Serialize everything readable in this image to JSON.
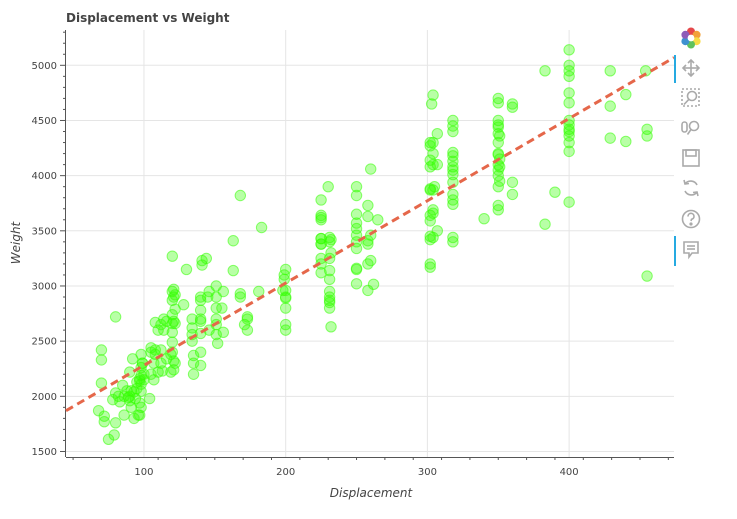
{
  "chart_data": {
    "type": "scatter",
    "title": "Displacement vs Weight",
    "xlabel": "Displacement",
    "ylabel": "Weight",
    "xlim": [
      45,
      474
    ],
    "ylim": [
      1450,
      5320
    ],
    "xticks": [
      100,
      200,
      300,
      400
    ],
    "yticks": [
      1500,
      2000,
      2500,
      3000,
      3500,
      4000,
      4500,
      5000
    ],
    "grid": true,
    "point_color": "#33ff00",
    "regression_color": "#e5674a",
    "regression": {
      "x0": 45,
      "y0": 1870,
      "x1": 474,
      "y1": 5070
    },
    "points": [
      [
        70,
        2420
      ],
      [
        70,
        2330
      ],
      [
        70,
        2120
      ],
      [
        68,
        1870
      ],
      [
        72,
        1820
      ],
      [
        72,
        1770
      ],
      [
        75,
        1610
      ],
      [
        79,
        1650
      ],
      [
        78,
        1970
      ],
      [
        80,
        2030
      ],
      [
        80,
        2720
      ],
      [
        80,
        1760
      ],
      [
        82,
        2000
      ],
      [
        83,
        1950
      ],
      [
        85,
        2100
      ],
      [
        86,
        2000
      ],
      [
        86,
        1830
      ],
      [
        88,
        2050
      ],
      [
        89,
        1990
      ],
      [
        90,
        2220
      ],
      [
        90,
        2000
      ],
      [
        90,
        1960
      ],
      [
        91,
        1900
      ],
      [
        91,
        2050
      ],
      [
        92,
        2340
      ],
      [
        93,
        1800
      ],
      [
        93,
        2040
      ],
      [
        94,
        1980
      ],
      [
        95,
        2070
      ],
      [
        95,
        2130
      ],
      [
        96,
        1830
      ],
      [
        97,
        2140
      ],
      [
        97,
        2160
      ],
      [
        97,
        1830
      ],
      [
        97,
        1940
      ],
      [
        98,
        2045
      ],
      [
        98,
        2190
      ],
      [
        98,
        2260
      ],
      [
        98,
        2380
      ],
      [
        98,
        1900
      ],
      [
        98,
        2110
      ],
      [
        99,
        2300
      ],
      [
        99,
        2300
      ],
      [
        100,
        2200
      ],
      [
        100,
        2150
      ],
      [
        104,
        1980
      ],
      [
        105,
        2200
      ],
      [
        105,
        2400
      ],
      [
        105,
        2440
      ],
      [
        107,
        2300
      ],
      [
        107,
        2150
      ],
      [
        108,
        2420
      ],
      [
        108,
        2380
      ],
      [
        108,
        2670
      ],
      [
        110,
        2220
      ],
      [
        110,
        2600
      ],
      [
        112,
        2650
      ],
      [
        112,
        2420
      ],
      [
        112,
        2300
      ],
      [
        113,
        2230
      ],
      [
        114,
        2600
      ],
      [
        114,
        2700
      ],
      [
        116,
        2680
      ],
      [
        116,
        2340
      ],
      [
        119,
        2380
      ],
      [
        119,
        2220
      ],
      [
        120,
        2950
      ],
      [
        120,
        2870
      ],
      [
        120,
        3270
      ],
      [
        120,
        2740
      ],
      [
        120,
        2660
      ],
      [
        120,
        2580
      ],
      [
        120,
        2490
      ],
      [
        120,
        2400
      ],
      [
        121,
        2240
      ],
      [
        121,
        2320
      ],
      [
        121,
        2900
      ],
      [
        121,
        2680
      ],
      [
        121,
        2970
      ],
      [
        122,
        2300
      ],
      [
        122,
        2920
      ],
      [
        122,
        2790
      ],
      [
        122,
        2660
      ],
      [
        128,
        2830
      ],
      [
        130,
        3150
      ],
      [
        134,
        2700
      ],
      [
        134,
        2620
      ],
      [
        134,
        2560
      ],
      [
        134,
        2500
      ],
      [
        135,
        2370
      ],
      [
        135,
        2300
      ],
      [
        135,
        2200
      ],
      [
        140,
        2400
      ],
      [
        140,
        2870
      ],
      [
        140,
        2780
      ],
      [
        140,
        2680
      ],
      [
        140,
        2570
      ],
      [
        140,
        2280
      ],
      [
        140,
        2700
      ],
      [
        140,
        2900
      ],
      [
        141,
        3230
      ],
      [
        141,
        3190
      ],
      [
        144,
        3250
      ],
      [
        145,
        2900
      ],
      [
        146,
        2950
      ],
      [
        146,
        2600
      ],
      [
        151,
        3000
      ],
      [
        151,
        2900
      ],
      [
        151,
        2800
      ],
      [
        151,
        2700
      ],
      [
        151,
        2650
      ],
      [
        151,
        2560
      ],
      [
        152,
        2480
      ],
      [
        155,
        2800
      ],
      [
        156,
        2580
      ],
      [
        156,
        2950
      ],
      [
        163,
        3140
      ],
      [
        163,
        3410
      ],
      [
        168,
        2900
      ],
      [
        168,
        2930
      ],
      [
        168,
        3820
      ],
      [
        171,
        2650
      ],
      [
        173,
        2700
      ],
      [
        173,
        2600
      ],
      [
        173,
        2720
      ],
      [
        181,
        2950
      ],
      [
        183,
        3530
      ],
      [
        198,
        2960
      ],
      [
        199,
        3100
      ],
      [
        199,
        3060
      ],
      [
        200,
        2960
      ],
      [
        200,
        2900
      ],
      [
        200,
        3150
      ],
      [
        200,
        2890
      ],
      [
        200,
        2800
      ],
      [
        200,
        2600
      ],
      [
        200,
        2650
      ],
      [
        225,
        3600
      ],
      [
        225,
        3430
      ],
      [
        225,
        3380
      ],
      [
        225,
        3250
      ],
      [
        225,
        3200
      ],
      [
        225,
        3120
      ],
      [
        225,
        3780
      ],
      [
        225,
        3640
      ],
      [
        225,
        3620
      ],
      [
        225,
        3430
      ],
      [
        225,
        3380
      ],
      [
        230,
        3900
      ],
      [
        231,
        3440
      ],
      [
        231,
        3400
      ],
      [
        231,
        3250
      ],
      [
        231,
        3140
      ],
      [
        231,
        3060
      ],
      [
        231,
        2950
      ],
      [
        231,
        2900
      ],
      [
        231,
        2870
      ],
      [
        231,
        2850
      ],
      [
        231,
        2800
      ],
      [
        232,
        2630
      ],
      [
        232,
        3300
      ],
      [
        232,
        3420
      ],
      [
        250,
        3900
      ],
      [
        250,
        3820
      ],
      [
        250,
        3650
      ],
      [
        250,
        3570
      ],
      [
        250,
        3520
      ],
      [
        250,
        3460
      ],
      [
        250,
        3400
      ],
      [
        250,
        3340
      ],
      [
        250,
        3160
      ],
      [
        250,
        3150
      ],
      [
        250,
        3020
      ],
      [
        258,
        3730
      ],
      [
        258,
        3630
      ],
      [
        258,
        3380
      ],
      [
        258,
        3410
      ],
      [
        258,
        3200
      ],
      [
        260,
        4060
      ],
      [
        260,
        3460
      ],
      [
        260,
        3230
      ],
      [
        262,
        3015
      ],
      [
        258,
        2960
      ],
      [
        265,
        3600
      ],
      [
        302,
        4300
      ],
      [
        302,
        4270
      ],
      [
        302,
        4140
      ],
      [
        302,
        4080
      ],
      [
        302,
        3880
      ],
      [
        302,
        3870
      ],
      [
        302,
        3640
      ],
      [
        302,
        3590
      ],
      [
        302,
        3450
      ],
      [
        302,
        3420
      ],
      [
        302,
        3170
      ],
      [
        302,
        3200
      ],
      [
        303,
        4650
      ],
      [
        304,
        4730
      ],
      [
        304,
        4300
      ],
      [
        304,
        4200
      ],
      [
        304,
        4100
      ],
      [
        304,
        3870
      ],
      [
        304,
        3690
      ],
      [
        304,
        3660
      ],
      [
        304,
        3440
      ],
      [
        305,
        3900
      ],
      [
        307,
        4380
      ],
      [
        307,
        4100
      ],
      [
        307,
        3500
      ],
      [
        318,
        4500
      ],
      [
        318,
        4450
      ],
      [
        318,
        4210
      ],
      [
        318,
        4130
      ],
      [
        318,
        4080
      ],
      [
        318,
        4010
      ],
      [
        318,
        3940
      ],
      [
        318,
        3830
      ],
      [
        318,
        3780
      ],
      [
        318,
        3740
      ],
      [
        318,
        3440
      ],
      [
        318,
        3400
      ],
      [
        318,
        4400
      ],
      [
        318,
        4180
      ],
      [
        318,
        4050
      ],
      [
        340,
        3610
      ],
      [
        350,
        4700
      ],
      [
        350,
        4660
      ],
      [
        350,
        4500
      ],
      [
        350,
        4460
      ],
      [
        350,
        4380
      ],
      [
        350,
        4300
      ],
      [
        350,
        4190
      ],
      [
        350,
        4100
      ],
      [
        350,
        4050
      ],
      [
        350,
        4000
      ],
      [
        350,
        3900
      ],
      [
        350,
        3730
      ],
      [
        350,
        3690
      ],
      [
        350,
        4200
      ],
      [
        350,
        4440
      ],
      [
        351,
        4360
      ],
      [
        351,
        3950
      ],
      [
        351,
        4150
      ],
      [
        351,
        4080
      ],
      [
        360,
        4650
      ],
      [
        360,
        3940
      ],
      [
        360,
        3830
      ],
      [
        360,
        4620
      ],
      [
        383,
        3560
      ],
      [
        383,
        4950
      ],
      [
        390,
        3850
      ],
      [
        400,
        5140
      ],
      [
        400,
        5000
      ],
      [
        400,
        4950
      ],
      [
        400,
        4900
      ],
      [
        400,
        4750
      ],
      [
        400,
        4660
      ],
      [
        400,
        4500
      ],
      [
        400,
        4460
      ],
      [
        400,
        4420
      ],
      [
        400,
        4360
      ],
      [
        400,
        4300
      ],
      [
        400,
        4220
      ],
      [
        400,
        3760
      ],
      [
        400,
        4400
      ],
      [
        429,
        4950
      ],
      [
        429,
        4630
      ],
      [
        429,
        4340
      ],
      [
        440,
        4310
      ],
      [
        440,
        4735
      ],
      [
        454,
        4950
      ],
      [
        455,
        4420
      ],
      [
        455,
        4360
      ],
      [
        455,
        3090
      ]
    ]
  },
  "toolbar": {
    "tools": [
      "bokeh-logo-icon",
      "pan-icon",
      "box-zoom-icon",
      "wheel-zoom-icon",
      "save-icon",
      "reset-icon",
      "help-icon",
      "hover-icon"
    ]
  }
}
